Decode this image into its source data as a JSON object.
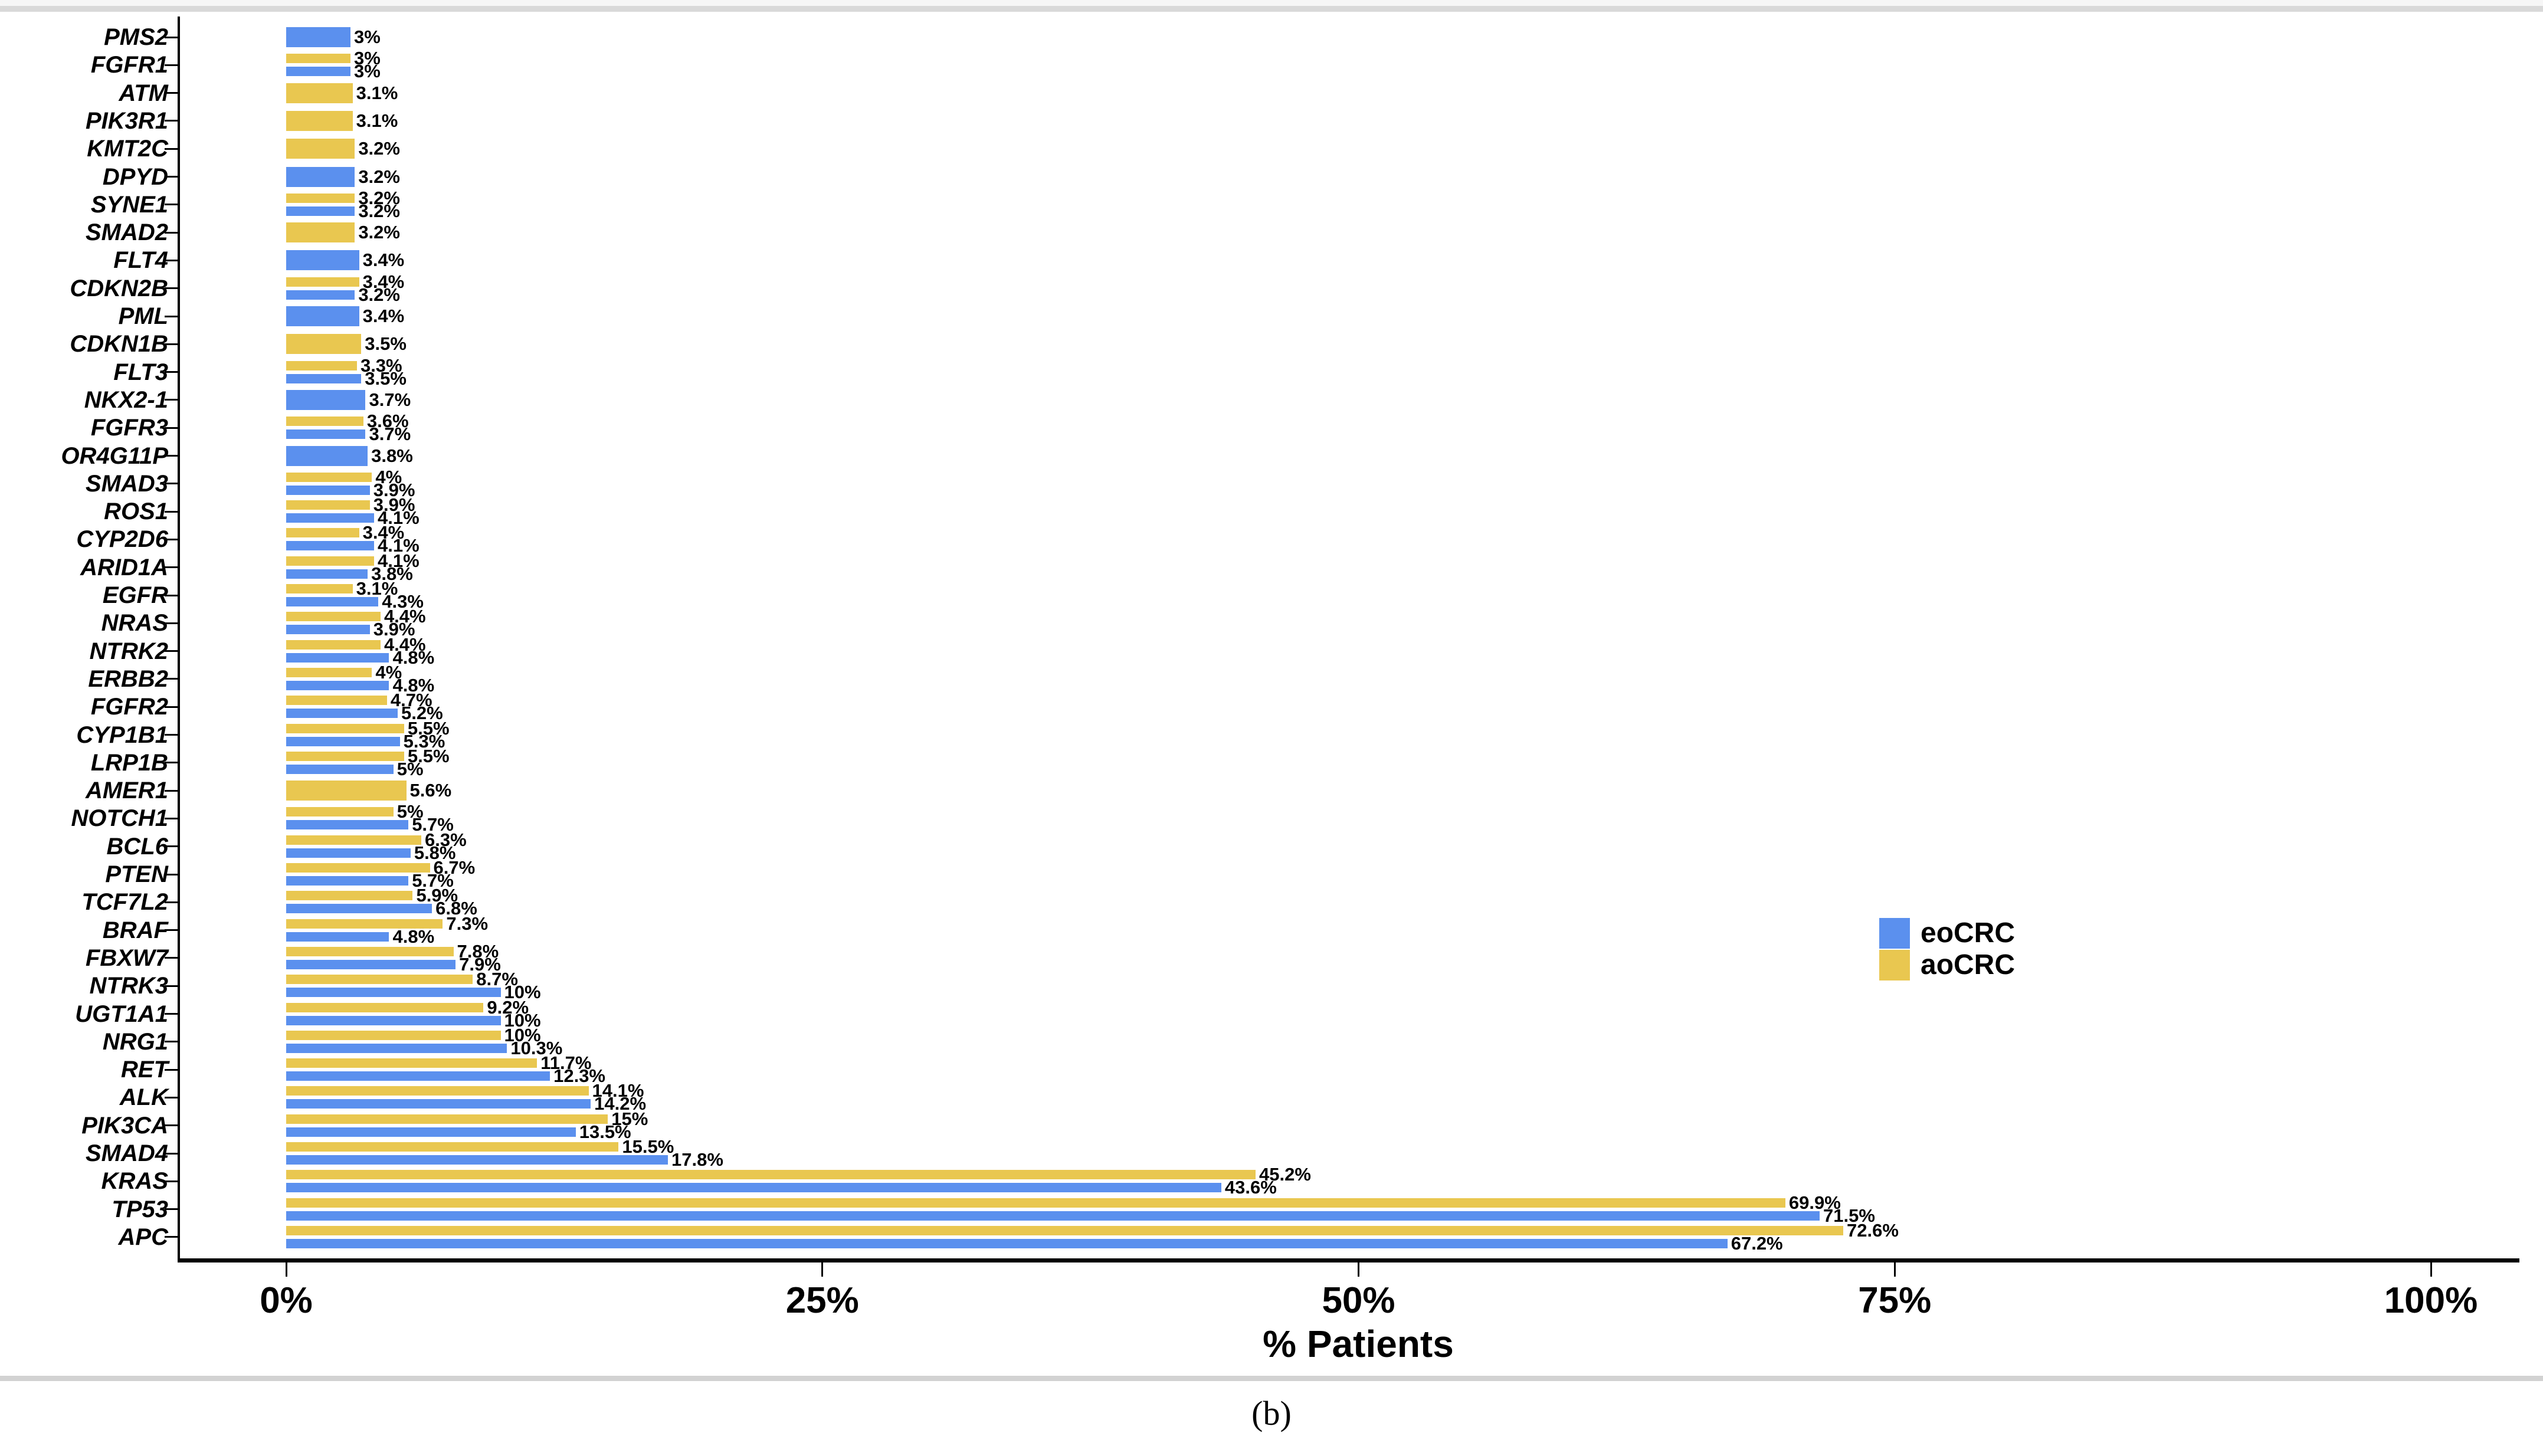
{
  "page": {
    "caption": "(b)"
  },
  "legend": {
    "items": [
      {
        "label": "eoCRC",
        "color": "#5B90EE"
      },
      {
        "label": "aoCRC",
        "color": "#E9C750"
      }
    ]
  },
  "chart_data": {
    "type": "bar",
    "orientation": "horizontal",
    "title": "",
    "xlabel": "% Patients",
    "ylabel": "",
    "xlim": [
      0,
      100
    ],
    "grid": false,
    "legend_position": "right-center",
    "x_ticks": [
      {
        "value": 0,
        "label": "0%"
      },
      {
        "value": 25,
        "label": "25%"
      },
      {
        "value": 50,
        "label": "50%"
      },
      {
        "value": 75,
        "label": "75%"
      },
      {
        "value": 100,
        "label": "100%"
      }
    ],
    "series_names": [
      "eoCRC",
      "aoCRC"
    ],
    "colors": {
      "eoCRC": "#5B90EE",
      "aoCRC": "#E9C750"
    },
    "unit": "%",
    "genes": [
      {
        "name": "PMS2",
        "eoCRC": 3,
        "aoCRC": null
      },
      {
        "name": "FGFR1",
        "eoCRC": 3,
        "aoCRC": 3
      },
      {
        "name": "ATM",
        "eoCRC": null,
        "aoCRC": 3.1
      },
      {
        "name": "PIK3R1",
        "eoCRC": null,
        "aoCRC": 3.1
      },
      {
        "name": "KMT2C",
        "eoCRC": null,
        "aoCRC": 3.2
      },
      {
        "name": "DPYD",
        "eoCRC": 3.2,
        "aoCRC": null
      },
      {
        "name": "SYNE1",
        "eoCRC": 3.2,
        "aoCRC": 3.2
      },
      {
        "name": "SMAD2",
        "eoCRC": null,
        "aoCRC": 3.2
      },
      {
        "name": "FLT4",
        "eoCRC": 3.4,
        "aoCRC": null
      },
      {
        "name": "CDKN2B",
        "eoCRC": 3.2,
        "aoCRC": 3.4
      },
      {
        "name": "PML",
        "eoCRC": 3.4,
        "aoCRC": null
      },
      {
        "name": "CDKN1B",
        "eoCRC": null,
        "aoCRC": 3.5
      },
      {
        "name": "FLT3",
        "eoCRC": 3.5,
        "aoCRC": 3.3
      },
      {
        "name": "NKX2-1",
        "eoCRC": 3.7,
        "aoCRC": null
      },
      {
        "name": "FGFR3",
        "eoCRC": 3.7,
        "aoCRC": 3.6
      },
      {
        "name": "OR4G11P",
        "eoCRC": 3.8,
        "aoCRC": null
      },
      {
        "name": "SMAD3",
        "eoCRC": 3.9,
        "aoCRC": 4
      },
      {
        "name": "ROS1",
        "eoCRC": 4.1,
        "aoCRC": 3.9
      },
      {
        "name": "CYP2D6",
        "eoCRC": 4.1,
        "aoCRC": 3.4
      },
      {
        "name": "ARID1A",
        "eoCRC": 3.8,
        "aoCRC": 4.1
      },
      {
        "name": "EGFR",
        "eoCRC": 4.3,
        "aoCRC": 3.1
      },
      {
        "name": "NRAS",
        "eoCRC": 3.9,
        "aoCRC": 4.4
      },
      {
        "name": "NTRK2",
        "eoCRC": 4.8,
        "aoCRC": 4.4
      },
      {
        "name": "ERBB2",
        "eoCRC": 4.8,
        "aoCRC": 4
      },
      {
        "name": "FGFR2",
        "eoCRC": 5.2,
        "aoCRC": 4.7
      },
      {
        "name": "CYP1B1",
        "eoCRC": 5.3,
        "aoCRC": 5.5
      },
      {
        "name": "LRP1B",
        "eoCRC": 5,
        "aoCRC": 5.5
      },
      {
        "name": "AMER1",
        "eoCRC": null,
        "aoCRC": 5.6
      },
      {
        "name": "NOTCH1",
        "eoCRC": 5.7,
        "aoCRC": 5
      },
      {
        "name": "BCL6",
        "eoCRC": 5.8,
        "aoCRC": 6.3
      },
      {
        "name": "PTEN",
        "eoCRC": 5.7,
        "aoCRC": 6.7
      },
      {
        "name": "TCF7L2",
        "eoCRC": 6.8,
        "aoCRC": 5.9
      },
      {
        "name": "BRAF",
        "eoCRC": 4.8,
        "aoCRC": 7.3
      },
      {
        "name": "FBXW7",
        "eoCRC": 7.9,
        "aoCRC": 7.8
      },
      {
        "name": "NTRK3",
        "eoCRC": 10,
        "aoCRC": 8.7
      },
      {
        "name": "UGT1A1",
        "eoCRC": 10,
        "aoCRC": 9.2
      },
      {
        "name": "NRG1",
        "eoCRC": 10.3,
        "aoCRC": 10
      },
      {
        "name": "RET",
        "eoCRC": 12.3,
        "aoCRC": 11.7
      },
      {
        "name": "ALK",
        "eoCRC": 14.2,
        "aoCRC": 14.1
      },
      {
        "name": "PIK3CA",
        "eoCRC": 13.5,
        "aoCRC": 15
      },
      {
        "name": "SMAD4",
        "eoCRC": 17.8,
        "aoCRC": 15.5
      },
      {
        "name": "KRAS",
        "eoCRC": 43.6,
        "aoCRC": 45.2
      },
      {
        "name": "TP53",
        "eoCRC": 71.5,
        "aoCRC": 69.9
      },
      {
        "name": "APC",
        "eoCRC": 67.2,
        "aoCRC": 72.6
      }
    ]
  }
}
